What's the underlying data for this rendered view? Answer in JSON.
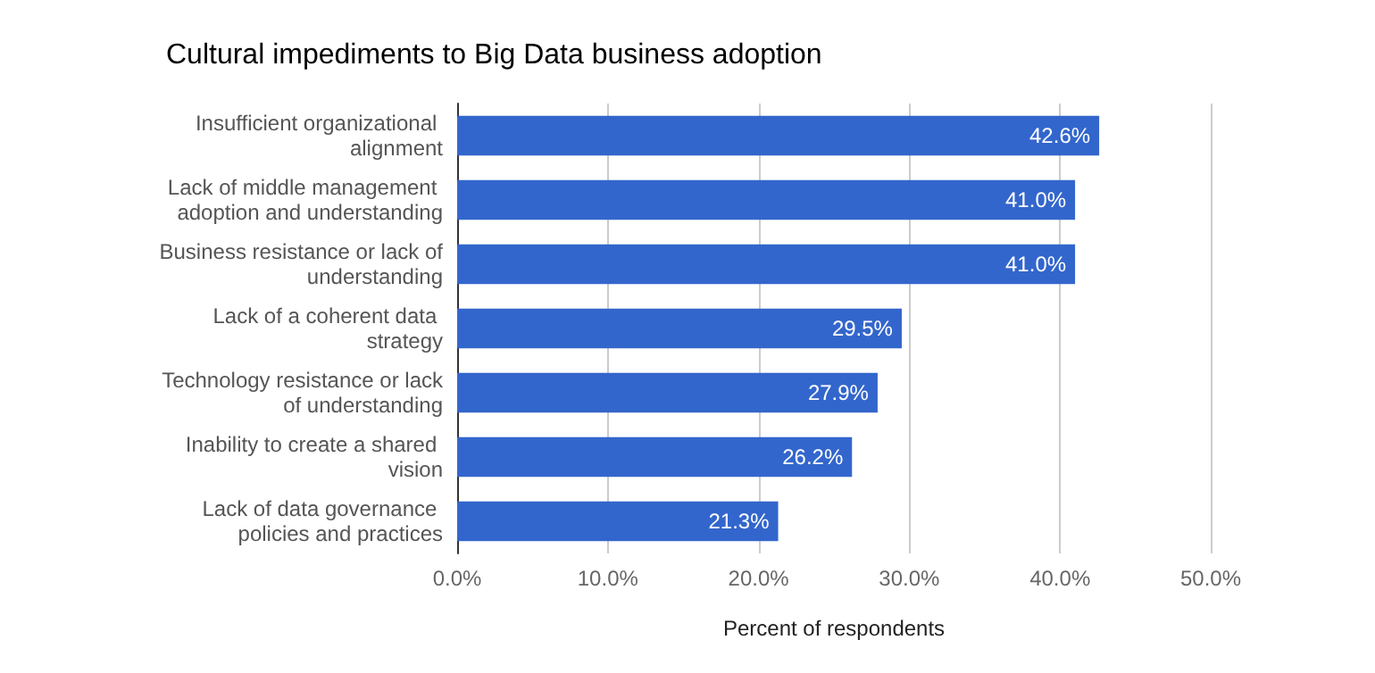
{
  "chart_data": {
    "type": "bar",
    "orientation": "horizontal",
    "title": "Cultural impediments to Big Data business adoption",
    "xlabel": "Percent of respondents",
    "categories": [
      "Insufficient organizational alignment",
      "Lack of middle management adoption and understanding",
      "Business resistance or lack of understanding",
      "Lack of a coherent data strategy",
      "Technology resistance or lack of understanding",
      "Inability to create a shared vision",
      "Lack of data governance policies and practices"
    ],
    "values": [
      42.6,
      41.0,
      41.0,
      29.5,
      27.9,
      26.2,
      21.3
    ],
    "value_labels": [
      "42.6%",
      "41.0%",
      "41.0%",
      "29.5%",
      "27.9%",
      "26.2%",
      "21.3%"
    ],
    "color": "#3366cc",
    "xlim": [
      0,
      50
    ],
    "xticks": [
      {
        "value": 0,
        "label": "0.0%"
      },
      {
        "value": 10,
        "label": "10.0%"
      },
      {
        "value": 20,
        "label": "20.0%"
      },
      {
        "value": 30,
        "label": "30.0%"
      },
      {
        "value": 40,
        "label": "40.0%"
      },
      {
        "value": 50,
        "label": "50.0%"
      }
    ],
    "grid": "x"
  }
}
